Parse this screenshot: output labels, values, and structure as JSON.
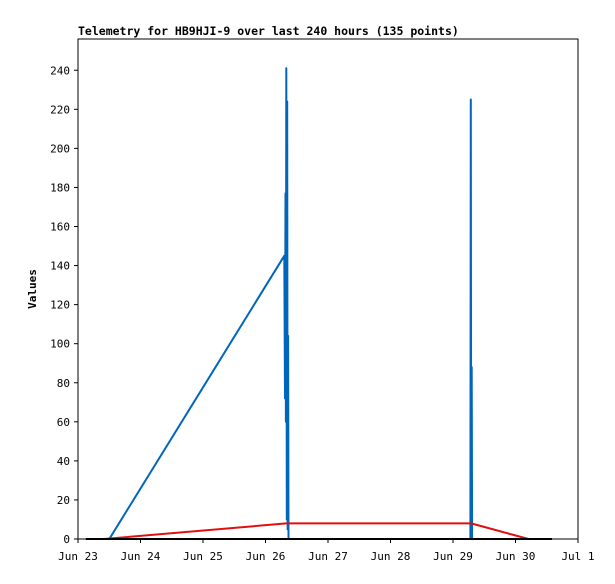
{
  "chart_data": {
    "type": "line",
    "title": "Telemetry for HB9HJI-9 over last 240 hours (135 points)",
    "ylabel": "Values",
    "xlabel": "",
    "x_tick_labels": [
      "Jun 23",
      "Jun 24",
      "Jun 25",
      "Jun 26",
      "Jun 27",
      "Jun 28",
      "Jun 29",
      "Jun 30",
      "Jul 1"
    ],
    "y_tick_labels": [
      "0",
      "20",
      "40",
      "60",
      "80",
      "100",
      "120",
      "140",
      "160",
      "180",
      "200",
      "220",
      "240"
    ],
    "ylim": [
      0,
      256
    ],
    "xlim": [
      "Jun 23",
      "Jul 1"
    ],
    "grid": false,
    "legend": "none",
    "series": [
      {
        "color": "#0066bb",
        "points": [
          [
            "Jun 23 12:00",
            0
          ],
          [
            "Jun 26 07:12",
            145
          ],
          [
            "Jun 26 07:30",
            72
          ],
          [
            "Jun 26 07:40",
            177
          ],
          [
            "Jun 26 07:50",
            60
          ],
          [
            "Jun 26 08:00",
            241
          ],
          [
            "Jun 26 08:10",
            10
          ],
          [
            "Jun 26 08:20",
            224
          ],
          [
            "Jun 26 08:30",
            5
          ],
          [
            "Jun 26 08:40",
            104
          ],
          [
            "Jun 26 08:50",
            0
          ],
          [
            "Jun 29 06:40",
            0
          ],
          [
            "Jun 29 06:50",
            225
          ],
          [
            "Jun 29 07:00",
            0
          ],
          [
            "Jun 29 07:10",
            88
          ],
          [
            "Jun 29 07:20",
            0
          ],
          [
            "Jun 30 14:00",
            0
          ]
        ]
      },
      {
        "color": "#dd1111",
        "points": [
          [
            "Jun 23 10:00",
            0
          ],
          [
            "Jun 26 08:00",
            8
          ],
          [
            "Jun 29 07:00",
            8
          ],
          [
            "Jun 30 05:00",
            0
          ],
          [
            "Jun 30 14:00",
            0
          ]
        ]
      },
      {
        "color": "#000000",
        "points": [
          [
            "Jun 23 03:00",
            0
          ],
          [
            "Jun 30 14:00",
            0
          ]
        ]
      }
    ]
  }
}
